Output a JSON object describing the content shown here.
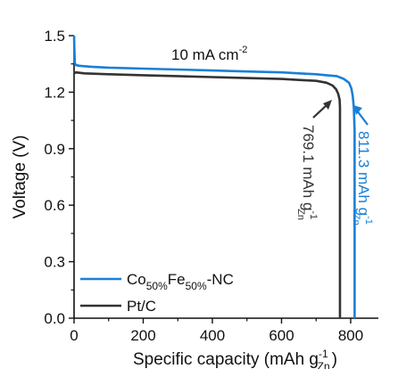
{
  "chart_data": {
    "type": "line",
    "xlabel": "Specific capacity (mAh g",
    "xlabel_sub": "Zn",
    "xlabel_sup": "-1",
    "xlabel_end": ")",
    "ylabel": "Voltage (V)",
    "xlim": [
      0,
      880
    ],
    "ylim": [
      0.0,
      1.5
    ],
    "xticks": [
      0,
      200,
      400,
      600,
      800
    ],
    "yticks": [
      0.0,
      0.3,
      0.6,
      0.9,
      1.2,
      1.5
    ],
    "ytick_labels": [
      "0.0",
      "0.3",
      "0.6",
      "0.9",
      "1.2",
      "1.5"
    ],
    "grid": false,
    "legend_position": "bottom-left",
    "current_label": "10 mA cm",
    "current_label_sup": "-2",
    "series": [
      {
        "name": "Co50%Fe50%-NC",
        "name_parts": {
          "a": "Co",
          "sub1": "50%",
          "b": "Fe",
          "sub2": "50%",
          "c": "-NC"
        },
        "color": "#1a7fd6",
        "x": [
          0,
          1,
          2,
          4,
          15,
          50,
          100,
          200,
          300,
          400,
          500,
          600,
          650,
          700,
          730,
          760,
          780,
          795,
          802,
          806,
          809,
          811.3,
          811.3
        ],
        "y": [
          1.5,
          1.42,
          1.36,
          1.345,
          1.34,
          1.335,
          1.33,
          1.325,
          1.32,
          1.315,
          1.31,
          1.305,
          1.3,
          1.295,
          1.29,
          1.285,
          1.27,
          1.25,
          1.22,
          1.18,
          1.12,
          1.0,
          0.0
        ],
        "annotation": {
          "text": "811.3 mAh g",
          "sub": "Zn",
          "sup": "-1",
          "x": 811.3
        }
      },
      {
        "name": "Pt/C",
        "color": "#333333",
        "x": [
          0,
          5,
          30,
          100,
          200,
          300,
          400,
          500,
          600,
          650,
          700,
          730,
          748,
          758,
          764,
          768,
          769.1,
          769.1
        ],
        "y": [
          1.3,
          1.305,
          1.3,
          1.295,
          1.29,
          1.285,
          1.28,
          1.275,
          1.27,
          1.265,
          1.26,
          1.25,
          1.235,
          1.215,
          1.19,
          1.16,
          1.12,
          0.0
        ],
        "annotation": {
          "text": "769.1 mAh g",
          "sub": "Zn",
          "sup": "-1",
          "x": 769.1
        }
      }
    ]
  }
}
